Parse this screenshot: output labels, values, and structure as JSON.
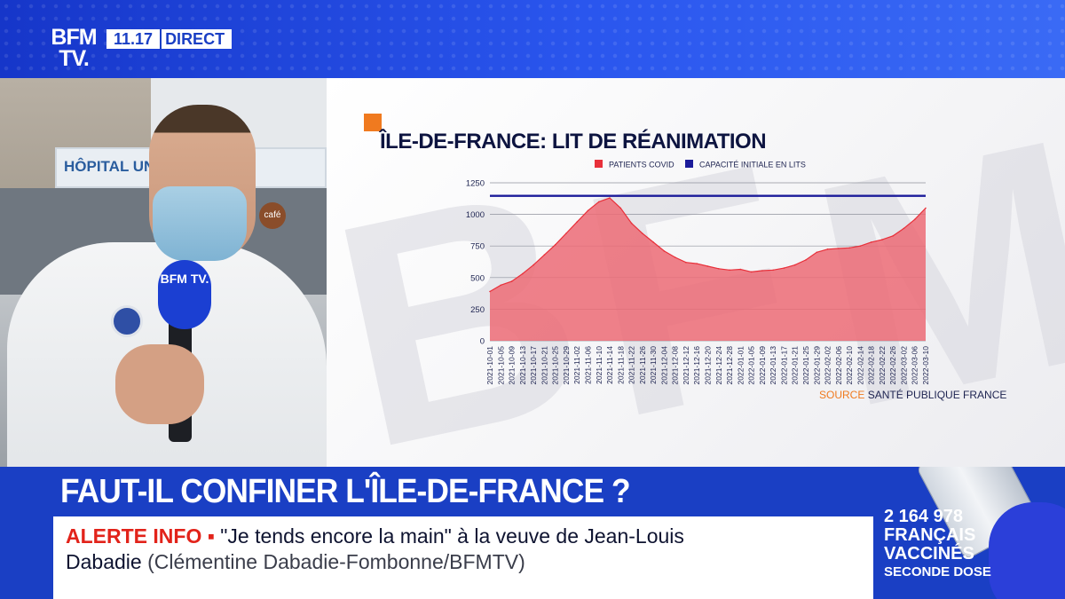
{
  "channel": {
    "logo_line1": "BFM",
    "logo_line2": "TV.",
    "time": "11.17",
    "live_label": "DIRECT"
  },
  "scene": {
    "hospital_sign": "HÔPITAL UNI      TIÉ-SALP",
    "cafe_sign": "café",
    "mic_label": "BFM TV."
  },
  "chart_data": {
    "type": "area",
    "title": "ÎLE-DE-FRANCE: LIT DE RÉANIMATION",
    "legend_position": "top",
    "legend": [
      {
        "name": "PATIENTS COVID",
        "color": "#e8303a"
      },
      {
        "name": "CAPACITÉ INITIALE EN LITS",
        "color": "#1b1b9a"
      }
    ],
    "ylim": [
      0,
      1250
    ],
    "yticks": [
      0,
      250,
      500,
      750,
      1000,
      1250
    ],
    "grid": true,
    "x": [
      "2021-10-01",
      "2021-10-05",
      "2021-10-09",
      "2021-10-13",
      "2021-10-17",
      "2021-10-21",
      "2021-10-25",
      "2021-10-29",
      "2021-11-02",
      "2021-11-06",
      "2021-11-10",
      "2021-11-14",
      "2021-11-18",
      "2021-11-22",
      "2021-11-26",
      "2021-11-30",
      "2021-12-04",
      "2021-12-08",
      "2021-12-12",
      "2021-12-16",
      "2021-12-20",
      "2021-12-24",
      "2021-12-28",
      "2022-01-01",
      "2022-01-05",
      "2022-01-09",
      "2022-01-13",
      "2022-01-17",
      "2022-01-21",
      "2022-01-25",
      "2022-01-29",
      "2022-02-02",
      "2022-02-06",
      "2022-02-10",
      "2022-02-14",
      "2022-02-18",
      "2022-02-22",
      "2022-02-26",
      "2022-03-02",
      "2022-03-06",
      "2022-03-10"
    ],
    "series": [
      {
        "name": "PATIENTS COVID",
        "color": "#e8303a",
        "values": [
          390,
          440,
          470,
          530,
          600,
          680,
          760,
          850,
          940,
          1030,
          1100,
          1130,
          1050,
          930,
          850,
          780,
          710,
          660,
          620,
          610,
          590,
          570,
          560,
          565,
          545,
          555,
          560,
          575,
          600,
          640,
          700,
          725,
          730,
          735,
          750,
          780,
          800,
          830,
          890,
          960,
          1050
        ]
      },
      {
        "name": "CAPACITÉ INITIALE EN LITS",
        "color": "#1b1b9a",
        "values": [
          1147,
          1147,
          1147,
          1147,
          1147,
          1147,
          1147,
          1147,
          1147,
          1147,
          1147,
          1147,
          1147,
          1147,
          1147,
          1147,
          1147,
          1147,
          1147,
          1147,
          1147,
          1147,
          1147,
          1147,
          1147,
          1147,
          1147,
          1147,
          1147,
          1147,
          1147,
          1147,
          1147,
          1147,
          1147,
          1147,
          1147,
          1147,
          1147,
          1147,
          1147
        ]
      }
    ],
    "source_word": "SOURCE",
    "source_name": "SANTÉ PUBLIQUE FRANCE"
  },
  "banner": {
    "headline": "FAUT-IL CONFINER L'ÎLE-DE-FRANCE ?",
    "alert_label": "ALERTE INFO ▪",
    "alert_text_1": " \"Je tends encore la main\" à la veuve de Jean-Louis",
    "alert_text_2a": "Dabadie",
    "alert_text_2b": "  (Clémentine Dabadie-Fombonne/BFMTV)"
  },
  "stat": {
    "number": "2 164 978",
    "line1": "FRANÇAIS",
    "line2": "VACCINÉS",
    "line3": "SECONDE DOSE"
  },
  "colors": {
    "brand_blue": "#1a3fc4",
    "alert_red": "#e2231a",
    "accent_orange": "#f07a1f",
    "area_fill": "#ec6b75"
  }
}
